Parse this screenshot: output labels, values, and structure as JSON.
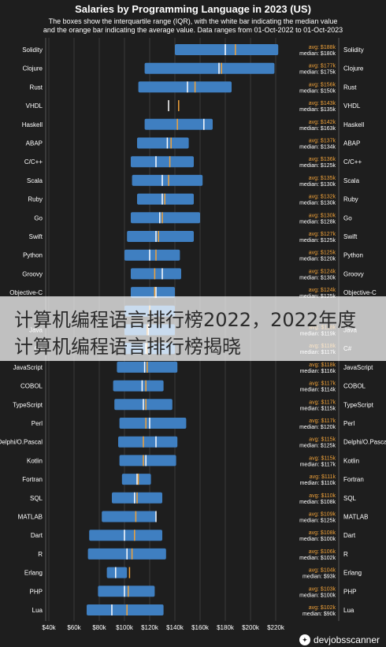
{
  "chart_data": {
    "type": "bar",
    "title": "Salaries by Programming Language in 2023 (US)",
    "subtitle_lines": [
      "The boxes show the interquartile range (IQR), with the white bar indicating the median value",
      "and the orange bar indicating the average value. Data ranges from 01-Oct-2022 to 01-Oct-2023"
    ],
    "x_ticks": [
      "$40k",
      "$60k",
      "$80k",
      "$100k",
      "$120k",
      "$140k",
      "$160k",
      "$180k",
      "$200k",
      "$220k"
    ],
    "xlim": [
      40,
      220
    ],
    "avg_prefix": "avg: ",
    "median_prefix": "median: ",
    "colors": {
      "box": "#3f7fc1",
      "median": "#ffffff",
      "average": "#f0a23a",
      "grid": "#3a3a3a",
      "label_avg": "#f0a23a"
    },
    "series": [
      {
        "name": "Solidity",
        "q1": 140,
        "q3": 222,
        "median": 180,
        "avg": 188,
        "avg_label": "$188k",
        "median_label": "$180k"
      },
      {
        "name": "Clojure",
        "q1": 116,
        "q3": 219,
        "median": 175,
        "avg": 177,
        "avg_label": "$177k",
        "median_label": "$175k"
      },
      {
        "name": "Rust",
        "q1": 111,
        "q3": 185,
        "median": 150,
        "avg": 156,
        "avg_label": "$156k",
        "median_label": "$150k"
      },
      {
        "name": "VHDL",
        "q1": 135,
        "q3": 135,
        "median": 135,
        "avg": 143,
        "avg_label": "$143k",
        "median_label": "$135k"
      },
      {
        "name": "Haskell",
        "q1": 116,
        "q3": 170,
        "median": 163,
        "avg": 142,
        "avg_label": "$142k",
        "median_label": "$163k"
      },
      {
        "name": "ABAP",
        "q1": 110,
        "q3": 151,
        "median": 134,
        "avg": 137,
        "avg_label": "$137k",
        "median_label": "$134k"
      },
      {
        "name": "C/C++",
        "q1": 105,
        "q3": 155,
        "median": 125,
        "avg": 136,
        "avg_label": "$136k",
        "median_label": "$125k"
      },
      {
        "name": "Scala",
        "q1": 106,
        "q3": 162,
        "median": 130,
        "avg": 135,
        "avg_label": "$135k",
        "median_label": "$130k"
      },
      {
        "name": "Ruby",
        "q1": 110,
        "q3": 155,
        "median": 130,
        "avg": 132,
        "avg_label": "$132k",
        "median_label": "$130k"
      },
      {
        "name": "Go",
        "q1": 105,
        "q3": 160,
        "median": 128,
        "avg": 130,
        "avg_label": "$130k",
        "median_label": "$128k"
      },
      {
        "name": "Swift",
        "q1": 102,
        "q3": 155,
        "median": 125,
        "avg": 127,
        "avg_label": "$127k",
        "median_label": "$125k"
      },
      {
        "name": "Python",
        "q1": 100,
        "q3": 144,
        "median": 120,
        "avg": 125,
        "avg_label": "$125k",
        "median_label": "$120k"
      },
      {
        "name": "Groovy",
        "q1": 105,
        "q3": 145,
        "median": 130,
        "avg": 124,
        "avg_label": "$124k",
        "median_label": "$130k"
      },
      {
        "name": "Objective-C",
        "q1": 105,
        "q3": 140,
        "median": 125,
        "avg": 124,
        "avg_label": "$124k",
        "median_label": "$125k"
      },
      {
        "name": "",
        "q1": 100,
        "q3": 140,
        "median": 120,
        "avg": 120,
        "avg_label": "",
        "median_label": ""
      },
      {
        "name": "Java",
        "q1": 100,
        "q3": 140,
        "median": 119,
        "avg": 118,
        "avg_label": "$118k",
        "median_label": "$119k"
      },
      {
        "name": "C#",
        "q1": 100,
        "q3": 140,
        "median": 117,
        "avg": 118,
        "avg_label": "$118k",
        "median_label": "$117k"
      },
      {
        "name": "JavaScript",
        "q1": 94,
        "q3": 142,
        "median": 116,
        "avg": 118,
        "avg_label": "$118k",
        "median_label": "$116k"
      },
      {
        "name": "COBOL",
        "q1": 91,
        "q3": 131,
        "median": 114,
        "avg": 117,
        "avg_label": "$117k",
        "median_label": "$114k"
      },
      {
        "name": "TypeScript",
        "q1": 92,
        "q3": 138,
        "median": 115,
        "avg": 117,
        "avg_label": "$117k",
        "median_label": "$115k"
      },
      {
        "name": "Perl",
        "q1": 96,
        "q3": 149,
        "median": 120,
        "avg": 117,
        "avg_label": "$117k",
        "median_label": "$120k"
      },
      {
        "name": "Delphi/O.Pascal",
        "q1": 95,
        "q3": 142,
        "median": 125,
        "avg": 115,
        "avg_label": "$115k",
        "median_label": "$125k"
      },
      {
        "name": "Kotlin",
        "q1": 96,
        "q3": 141,
        "median": 117,
        "avg": 115,
        "avg_label": "$115k",
        "median_label": "$117k"
      },
      {
        "name": "Fortran",
        "q1": 98,
        "q3": 121,
        "median": 110,
        "avg": 111,
        "avg_label": "$111k",
        "median_label": "$110k"
      },
      {
        "name": "SQL",
        "q1": 90,
        "q3": 130,
        "median": 108,
        "avg": 110,
        "avg_label": "$110k",
        "median_label": "$108k"
      },
      {
        "name": "MATLAB",
        "q1": 82,
        "q3": 125,
        "median": 125,
        "avg": 109,
        "avg_label": "$109k",
        "median_label": "$125k"
      },
      {
        "name": "Dart",
        "q1": 72,
        "q3": 130,
        "median": 100,
        "avg": 108,
        "avg_label": "$108k",
        "median_label": "$100k"
      },
      {
        "name": "R",
        "q1": 71,
        "q3": 133,
        "median": 102,
        "avg": 106,
        "avg_label": "$106k",
        "median_label": "$102k"
      },
      {
        "name": "Erlang",
        "q1": 86,
        "q3": 102,
        "median": 93,
        "avg": 104,
        "avg_label": "$104k",
        "median_label": "$93k"
      },
      {
        "name": "PHP",
        "q1": 79,
        "q3": 124,
        "median": 100,
        "avg": 103,
        "avg_label": "$103k",
        "median_label": "$100k"
      },
      {
        "name": "Lua",
        "q1": 70,
        "q3": 131,
        "median": 90,
        "avg": 102,
        "avg_label": "$102k",
        "median_label": "$90k"
      }
    ]
  },
  "overlay": {
    "line1": "计算机编程语言排行榜2022，2022年度",
    "line2": "计算机编程语言排行榜揭晓"
  },
  "watermark": {
    "text": "devjobsscanner",
    "icon": "devjobsscanner-logo-icon"
  }
}
